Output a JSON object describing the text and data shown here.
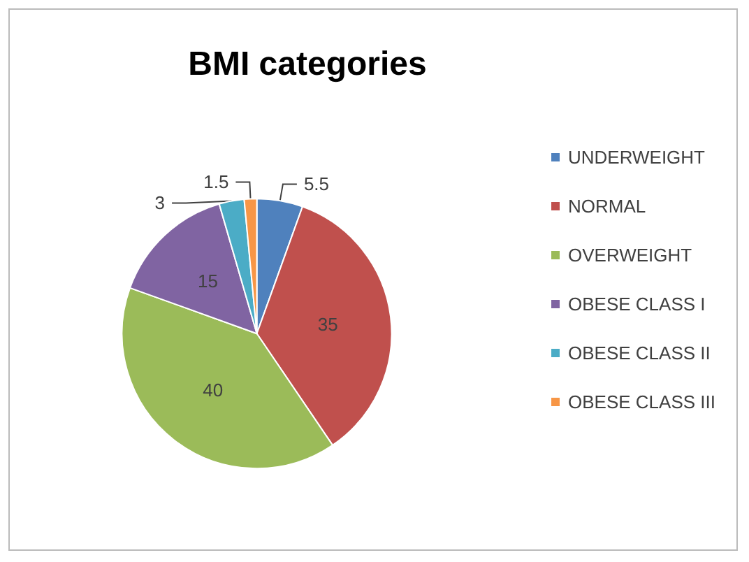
{
  "chart_data": {
    "type": "pie",
    "title": "BMI categories",
    "categories": [
      "UNDERWEIGHT",
      "NORMAL",
      "OVERWEIGHT",
      "OBESE CLASS I",
      "OBESE CLASS II",
      "OBESE CLASS III"
    ],
    "values": [
      5.5,
      35,
      40,
      15,
      3,
      1.5
    ],
    "colors": [
      "#4f81bd",
      "#c0504d",
      "#9bbb59",
      "#8064a2",
      "#4bacc6",
      "#f79646"
    ],
    "data_labels": true,
    "legend": "right"
  }
}
